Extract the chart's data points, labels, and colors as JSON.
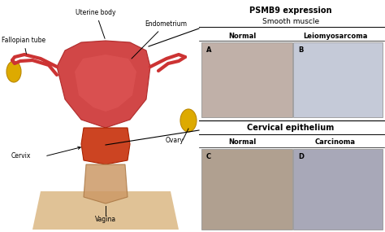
{
  "title": "PSMB9 expression",
  "subtitle_top": "Smooth muscle",
  "subtitle_bottom": "Cervical epithelium",
  "label_A": "A",
  "label_B": "B",
  "label_C": "C",
  "label_D": "D",
  "normal_label": "Normal",
  "leio_label": "Leiomyosarcoma",
  "carcinoma_label": "Carcinoma",
  "bg_color": "#ffffff",
  "panel_A_color": "#c0b0a8",
  "panel_B_color": "#c5cad8",
  "panel_C_color": "#b0a090",
  "panel_D_color": "#a8a8b8",
  "uterus_color": "#cc3333",
  "ovary_color": "#ddaa00",
  "vagina_color": "#cc9966",
  "base_color": "#d4a96a"
}
